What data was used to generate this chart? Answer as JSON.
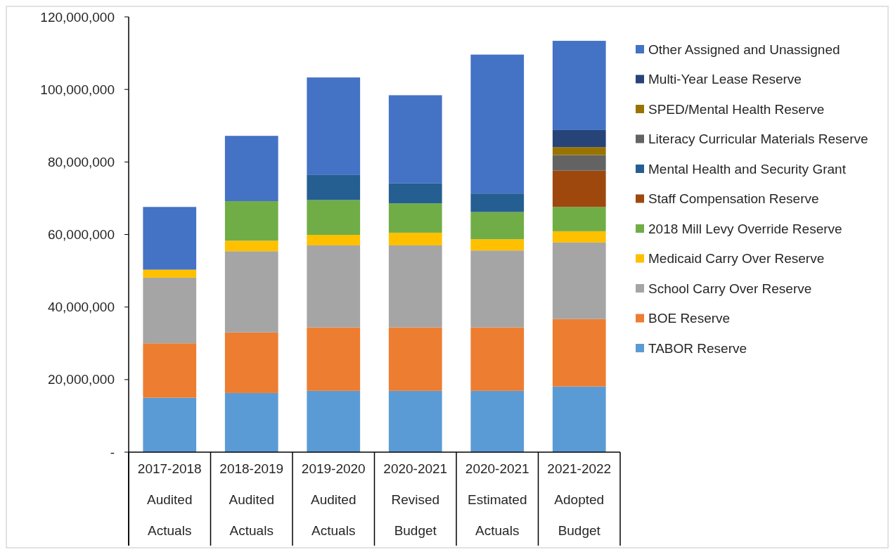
{
  "chart_data": {
    "type": "bar",
    "stacked": true,
    "legend": "right",
    "categories": [
      "2017-2018 Audited Actuals",
      "2018-2019 Audited Actuals",
      "2019-2020 Audited Actuals",
      "2020-2021 Revised Budget",
      "2020-2021 Estimated Actuals",
      "2021-2022 Adopted Budget"
    ],
    "ylim": [
      0,
      120000000
    ],
    "yticks": [
      {
        "value": 0,
        "label": "-"
      },
      {
        "value": 20000000,
        "label": "20,000,000"
      },
      {
        "value": 40000000,
        "label": "40,000,000"
      },
      {
        "value": 60000000,
        "label": "60,000,000"
      },
      {
        "value": 80000000,
        "label": "80,000,000"
      },
      {
        "value": 100000000,
        "label": "100,000,000"
      },
      {
        "value": 120000000,
        "label": "120,000,000"
      }
    ],
    "series": [
      {
        "name": "TABOR Reserve",
        "color": "#5b9bd5",
        "values": [
          15000000,
          16300000,
          16900000,
          16900000,
          16900000,
          18100000
        ]
      },
      {
        "name": "BOE Reserve",
        "color": "#ed7d31",
        "values": [
          15000000,
          16700000,
          17500000,
          17500000,
          17500000,
          18600000
        ]
      },
      {
        "name": "School Carry Over Reserve",
        "color": "#a5a5a5",
        "values": [
          18100000,
          22400000,
          22600000,
          22600000,
          21200000,
          21100000
        ]
      },
      {
        "name": "Medicaid Carry Over Reserve",
        "color": "#ffc000",
        "values": [
          2200000,
          2900000,
          2900000,
          3500000,
          3100000,
          3100000
        ]
      },
      {
        "name": "2018 Mill Levy Override Reserve",
        "color": "#70ad47",
        "values": [
          null,
          10900000,
          9600000,
          8100000,
          7500000,
          6700000
        ]
      },
      {
        "name": "Staff Compensation Reserve",
        "color": "#9e480e",
        "values": [
          null,
          null,
          null,
          null,
          null,
          10000000
        ]
      },
      {
        "name": "Mental Health and Security Grant",
        "color": "#255e91",
        "values": [
          null,
          null,
          6900000,
          5500000,
          5100000,
          null
        ]
      },
      {
        "name": "Literacy Curricular Materials Reserve",
        "color": "#636363",
        "values": [
          null,
          null,
          null,
          null,
          null,
          4300000
        ]
      },
      {
        "name": "SPED/Mental Health Reserve",
        "color": "#997300",
        "values": [
          null,
          null,
          null,
          null,
          null,
          2200000
        ]
      },
      {
        "name": "Multi-Year Lease Reserve",
        "color": "#264478",
        "values": [
          null,
          null,
          null,
          null,
          null,
          4700000
        ]
      },
      {
        "name": "Other Assigned and Unassigned",
        "color": "#4472c4",
        "values": [
          17300000,
          18000000,
          26900000,
          24300000,
          38300000,
          24600000
        ]
      }
    ]
  }
}
